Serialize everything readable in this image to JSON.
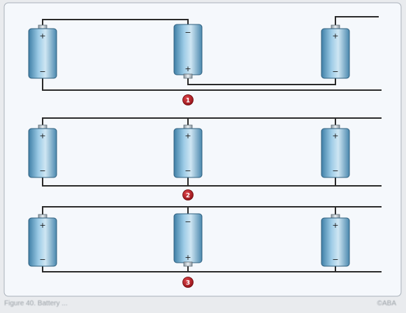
{
  "diagram": {
    "panels": [
      {
        "badge": "1",
        "cells": [
          {
            "top": "+",
            "bottom": "−"
          },
          {
            "top": "−",
            "bottom": "+"
          },
          {
            "top": "+",
            "bottom": "−"
          }
        ]
      },
      {
        "badge": "2",
        "cells": [
          {
            "top": "+",
            "bottom": "−"
          },
          {
            "top": "+",
            "bottom": "−"
          },
          {
            "top": "+",
            "bottom": "−"
          }
        ]
      },
      {
        "badge": "3",
        "cells": [
          {
            "top": "+",
            "bottom": "−"
          },
          {
            "top": "−",
            "bottom": "+"
          },
          {
            "top": "+",
            "bottom": "−"
          }
        ]
      }
    ]
  },
  "caption": {
    "left": "Figure 40. Battery ...",
    "right": "©ABA"
  },
  "colors": {
    "panel_bg": "#f5f8fc",
    "panel_border": "#a9b1ba",
    "wire": "#2a2a2a",
    "battery_light": "#cfe6f3",
    "battery_mid": "#86b8d6",
    "battery_dark": "#3f7fa6",
    "badge": "#b3141b"
  }
}
